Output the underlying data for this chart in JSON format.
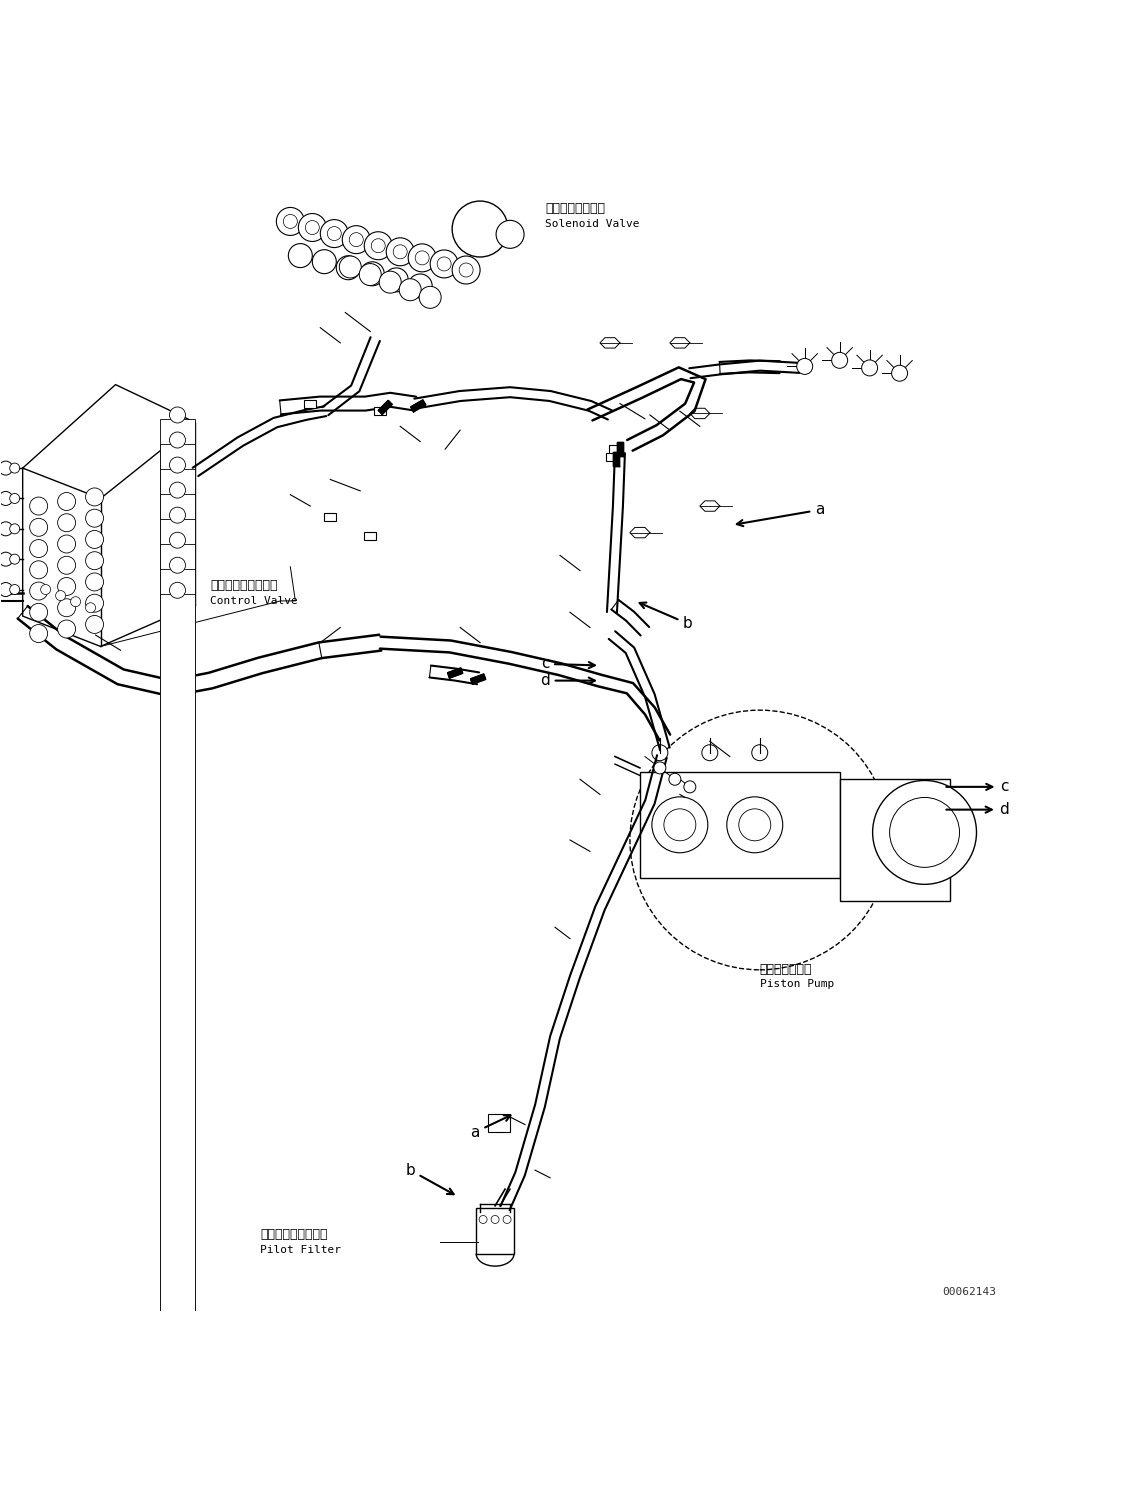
{
  "background_color": "#ffffff",
  "figure_width": 11.33,
  "figure_height": 14.91,
  "dpi": 100,
  "part_number": "00062143",
  "labels": {
    "solenoid_valve_jp": "ソレノイドバルブ",
    "solenoid_valve_en": "Solenoid Valve",
    "control_valve_jp": "コントロールバルブ",
    "control_valve_en": "Control Valve",
    "piston_pump_jp": "ピストンポンプ",
    "piston_pump_en": "Piston Pump",
    "pilot_filter_jp": "パイロットフィルタ",
    "pilot_filter_en": "Pilot Filter"
  },
  "text_color": "#000000",
  "line_color": "#000000",
  "font_size_label": 9,
  "font_size_callout": 11,
  "font_size_partnum": 8
}
